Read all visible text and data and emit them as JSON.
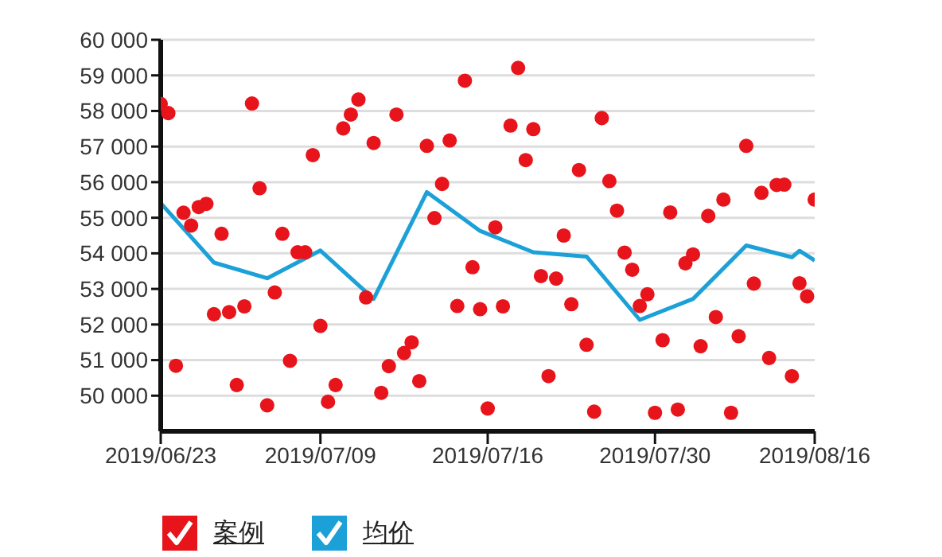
{
  "chart_data": {
    "type": "scatter",
    "categories": [
      "2019/06/23",
      null,
      null,
      null,
      null,
      null,
      null,
      null,
      null,
      null,
      null,
      null,
      null,
      null,
      null,
      null,
      null,
      null,
      null,
      null,
      null,
      "2019/07/09",
      null,
      null,
      null,
      null,
      null,
      null,
      null,
      null,
      null,
      null,
      null,
      null,
      null,
      null,
      null,
      null,
      null,
      null,
      null,
      null,
      null,
      "2019/07/16",
      null,
      null,
      null,
      null,
      null,
      null,
      null,
      null,
      null,
      null,
      null,
      null,
      null,
      null,
      null,
      null,
      null,
      null,
      null,
      null,
      null,
      "2019/07/30",
      null,
      null,
      null,
      null,
      null,
      null,
      null,
      null,
      null,
      null,
      null,
      null,
      null,
      null,
      null,
      null,
      null,
      null,
      null,
      null,
      "2019/08/16"
    ],
    "ylim": [
      49000,
      60000
    ],
    "yticks": [
      {
        "value": 50000,
        "label": "50 000"
      },
      {
        "value": 51000,
        "label": "51 000"
      },
      {
        "value": 52000,
        "label": "52 000"
      },
      {
        "value": 53000,
        "label": "53 000"
      },
      {
        "value": 54000,
        "label": "54 000"
      },
      {
        "value": 55000,
        "label": "55 000"
      },
      {
        "value": 56000,
        "label": "56 000"
      },
      {
        "value": 57000,
        "label": "57 000"
      },
      {
        "value": 58000,
        "label": "58 000"
      },
      {
        "value": 59000,
        "label": "59 000"
      },
      {
        "value": 60000,
        "label": "60 000"
      }
    ],
    "grid": "y",
    "legend": "bottom left",
    "series": [
      {
        "name": "案例",
        "color": "#e8141b",
        "marker": "circle",
        "values": [
          58200,
          57940,
          50840,
          55140,
          54780,
          55300,
          55390,
          52290,
          54550,
          52350,
          50300,
          52510,
          58210,
          55830,
          49730,
          52900,
          54550,
          50980,
          54030,
          54030,
          56760,
          51960,
          49830,
          50300,
          57510,
          57900,
          58320,
          52760,
          57100,
          50080,
          50830,
          57900,
          51200,
          51500,
          50410,
          57020,
          54990,
          55950,
          57170,
          52520,
          58850,
          53610,
          52430,
          49640,
          54730,
          52510,
          57590,
          59210,
          56620,
          57490,
          53360,
          50550,
          53290,
          54500,
          52570,
          56340,
          51430,
          49550,
          57800,
          56030,
          55200,
          54020,
          53540,
          52520,
          52850,
          49520,
          51560,
          55150,
          49610,
          53720,
          53970,
          51390,
          55050,
          52210,
          55510,
          49520,
          51670,
          57020,
          53150,
          55700,
          51060,
          55920,
          55930,
          50550,
          53160,
          52790,
          55510
        ]
      },
      {
        "name": "均价",
        "type": "line",
        "color": "#1ba1d8",
        "marker": "none",
        "line_style": "solid",
        "values": [
          55410,
          null,
          null,
          null,
          null,
          null,
          null,
          53740,
          null,
          null,
          null,
          null,
          null,
          null,
          53300,
          null,
          null,
          null,
          null,
          null,
          null,
          54080,
          null,
          null,
          null,
          null,
          null,
          null,
          52720,
          null,
          null,
          null,
          null,
          null,
          null,
          55720,
          null,
          null,
          null,
          null,
          null,
          null,
          54630,
          null,
          null,
          null,
          null,
          null,
          null,
          54030,
          null,
          null,
          null,
          null,
          null,
          null,
          53910,
          null,
          null,
          null,
          null,
          null,
          null,
          52130,
          null,
          null,
          null,
          null,
          null,
          null,
          52720,
          null,
          null,
          null,
          null,
          null,
          null,
          54220,
          null,
          null,
          null,
          null,
          null,
          53890,
          54070,
          null,
          53800
        ]
      }
    ]
  }
}
